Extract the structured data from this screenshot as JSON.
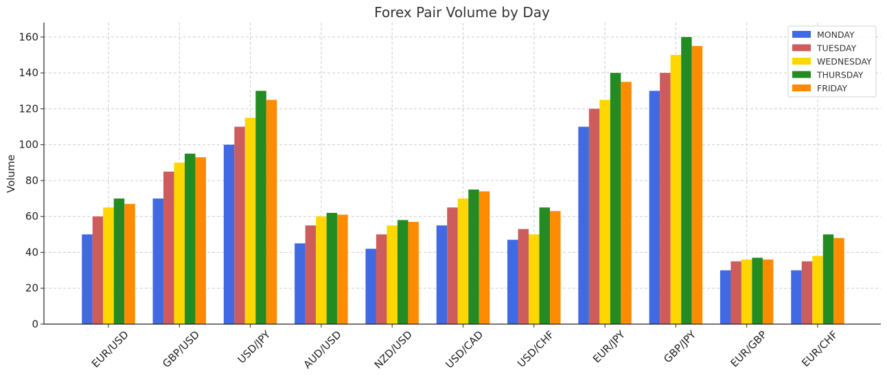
{
  "chart_data": {
    "type": "bar",
    "title": "Forex Pair Volume by Day",
    "xlabel": "",
    "ylabel": "Volume",
    "categories": [
      "EUR/USD",
      "GBP/USD",
      "USD/JPY",
      "AUD/USD",
      "NZD/USD",
      "USD/CAD",
      "USD/CHF",
      "EUR/JPY",
      "GBP/JPY",
      "EUR/GBP",
      "EUR/CHF"
    ],
    "ylim": [
      0,
      168
    ],
    "yticks": [
      0,
      20,
      40,
      60,
      80,
      100,
      120,
      140,
      160
    ],
    "grid": true,
    "legend_position": "top-right",
    "series": [
      {
        "name": "MONDAY",
        "color": "#4169E1",
        "values": [
          50,
          70,
          100,
          45,
          42,
          55,
          47,
          110,
          130,
          30,
          30
        ]
      },
      {
        "name": "TUESDAY",
        "color": "#CD5C5C",
        "values": [
          60,
          85,
          110,
          55,
          50,
          65,
          53,
          120,
          140,
          35,
          35
        ]
      },
      {
        "name": "WEDNESDAY",
        "color": "#FFD700",
        "values": [
          65,
          90,
          115,
          60,
          55,
          70,
          50,
          125,
          150,
          36,
          38
        ]
      },
      {
        "name": "THURSDAY",
        "color": "#228B22",
        "values": [
          70,
          95,
          130,
          62,
          58,
          75,
          65,
          140,
          160,
          37,
          50
        ]
      },
      {
        "name": "FRIDAY",
        "color": "#FF8C00",
        "values": [
          67,
          93,
          125,
          61,
          57,
          74,
          63,
          135,
          155,
          36,
          48
        ]
      }
    ]
  }
}
